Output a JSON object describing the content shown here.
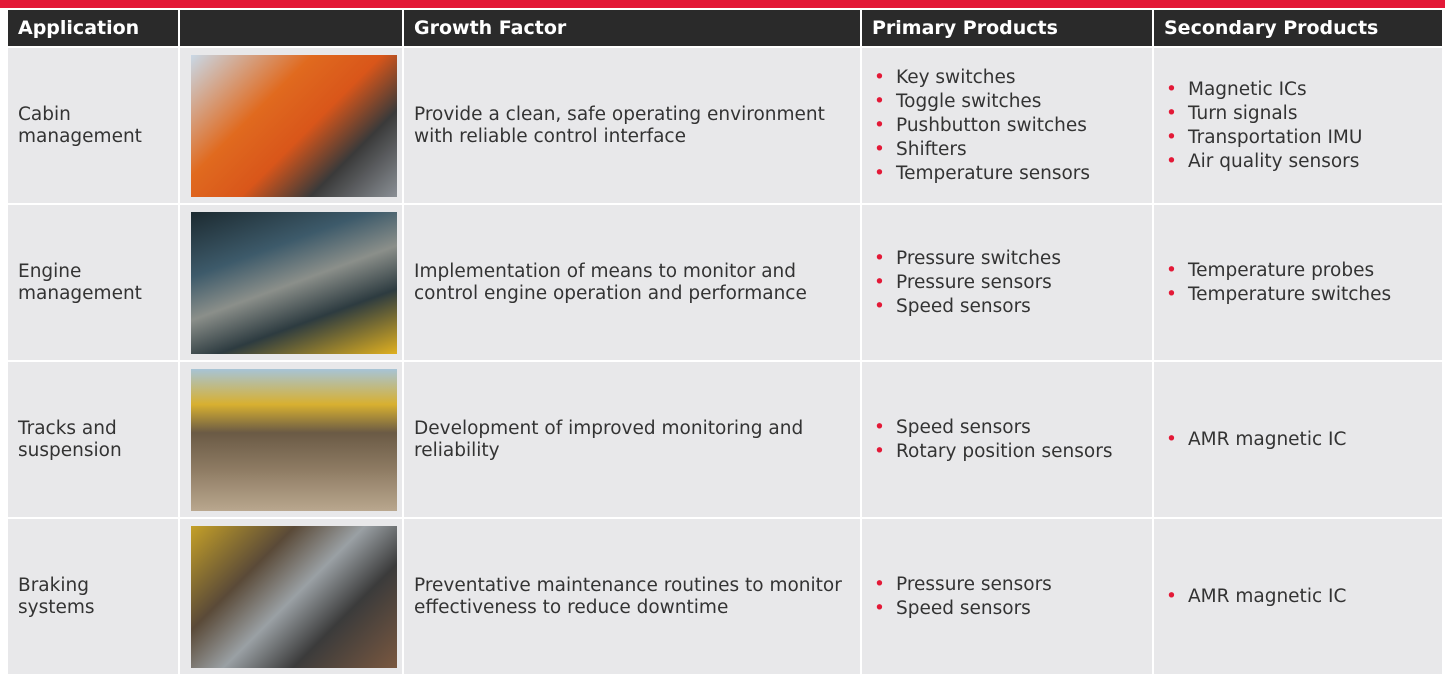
{
  "header": {
    "application": "Application",
    "growth_factor": "Growth Factor",
    "primary_products": "Primary Products",
    "secondary_products": "Secondary Products"
  },
  "rows": [
    {
      "application": "Cabin management",
      "growth_factor": "Provide a clean, safe operating environment with reliable control interface",
      "primary_products": [
        "Key switches",
        "Toggle switches",
        "Pushbutton switches",
        "Shifters",
        "Temperature sensors"
      ],
      "secondary_products": [
        "Magnetic ICs",
        "Turn signals",
        "Transportation IMU",
        "Air quality sensors"
      ]
    },
    {
      "application": "Engine management",
      "growth_factor": "Implementation of means to monitor and control engine operation and performance",
      "primary_products": [
        "Pressure switches",
        "Pressure sensors",
        "Speed sensors"
      ],
      "secondary_products": [
        "Temperature probes",
        "Temperature switches"
      ]
    },
    {
      "application": "Tracks and suspension",
      "growth_factor": "Development of improved monitoring and reliability",
      "primary_products": [
        "Speed sensors",
        "Rotary position sensors"
      ],
      "secondary_products": [
        "AMR magnetic IC"
      ]
    },
    {
      "application": "Braking systems",
      "growth_factor": "Preventative maintenance routines to monitor effectiveness to reduce downtime",
      "primary_products": [
        "Pressure sensors",
        "Speed sensors"
      ],
      "secondary_products": [
        "AMR magnetic IC"
      ]
    }
  ]
}
